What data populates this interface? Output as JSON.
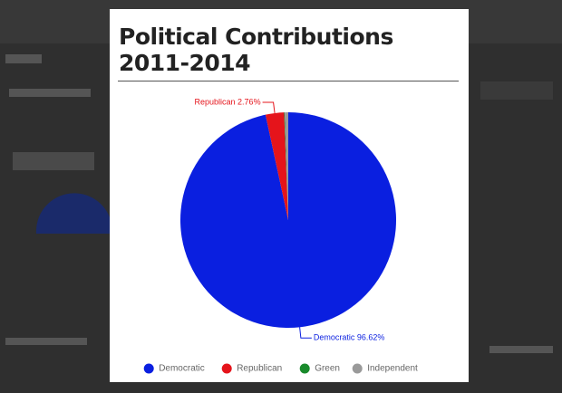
{
  "chart_data": {
    "type": "pie",
    "title": "Political Contributions 2011-2014",
    "categories": [
      "Democratic",
      "Republican",
      "Green",
      "Independent"
    ],
    "values": [
      96.62,
      2.76,
      0.1,
      0.52
    ],
    "value_labels": [
      "Democratic 96.62%",
      "Republican 2.76%",
      null,
      null
    ],
    "colors": [
      "#0a1fe0",
      "#e5141b",
      "#198a2b",
      "#9a9a9a"
    ],
    "legend": "bottom"
  }
}
